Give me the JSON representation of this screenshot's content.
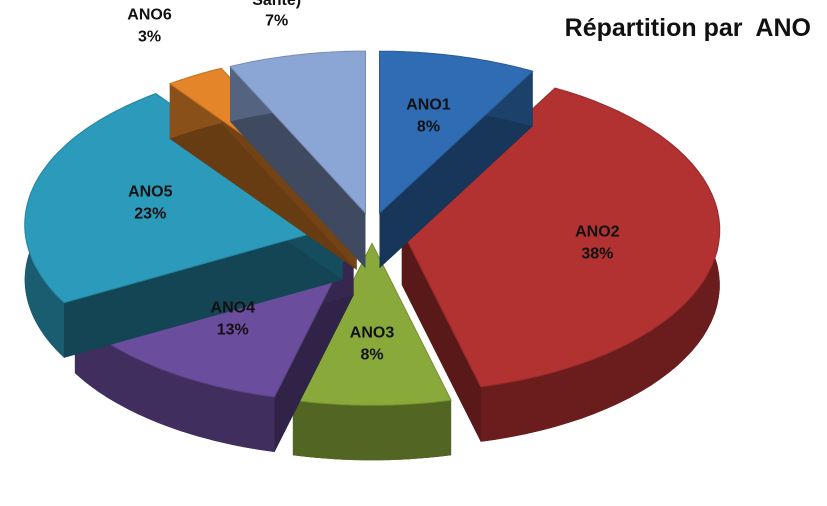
{
  "chart_data": {
    "type": "pie",
    "title": "Répartition par  ANO",
    "categories": [
      "ANO1",
      "ANO2",
      "ANO3",
      "ANO4",
      "ANO5",
      "ANO6",
      "(Dispo,Détach,Dir, Santé)"
    ],
    "values": [
      8,
      38,
      8,
      13,
      23,
      3,
      7
    ],
    "value_labels": [
      "8%",
      "38%",
      "8%",
      "13%",
      "23%",
      "3%",
      "7%"
    ],
    "colors": [
      "#2f6cb3",
      "#b23131",
      "#89a93b",
      "#6b4d9d",
      "#2b9abb",
      "#e5852a",
      "#8ba5d5"
    ]
  }
}
